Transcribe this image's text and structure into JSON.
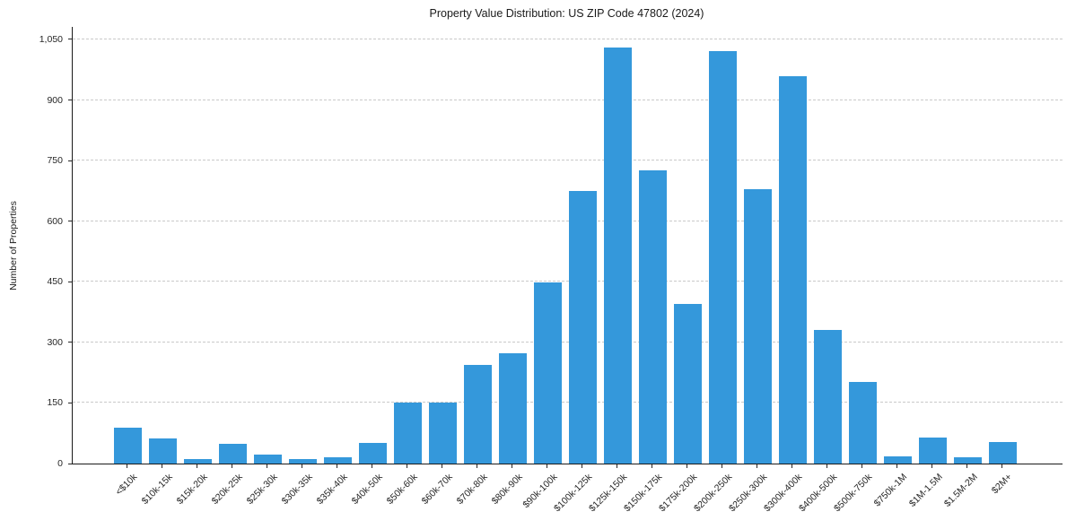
{
  "chart_data": {
    "type": "bar",
    "title": "Property Value Distribution: US ZIP Code 47802 (2024)",
    "xlabel": "",
    "ylabel": "Number of Properties",
    "categories": [
      "<$10k",
      "$10k-15k",
      "$15k-20k",
      "$20k-25k",
      "$25k-30k",
      "$30k-35k",
      "$35k-40k",
      "$40k-50k",
      "$50k-60k",
      "$60k-70k",
      "$70k-80k",
      "$80k-90k",
      "$90k-100k",
      "$100k-125k",
      "$125k-150k",
      "$150k-175k",
      "$175k-200k",
      "$200k-250k",
      "$250k-300k",
      "$300k-400k",
      "$400k-500k",
      "$500k-750k",
      "$750k-1M",
      "$1M-1.5M",
      "$1.5M-2M",
      "$2M+"
    ],
    "values": [
      88,
      62,
      12,
      48,
      22,
      12,
      16,
      50,
      152,
      150,
      245,
      272,
      448,
      675,
      1030,
      725,
      396,
      1022,
      680,
      958,
      330,
      203,
      18,
      65,
      15,
      53
    ],
    "y_ticks": [
      0,
      150,
      300,
      450,
      600,
      750,
      900,
      1050
    ],
    "y_tick_labels": [
      "0",
      "150",
      "300",
      "450",
      "600",
      "750",
      "900",
      "1,050"
    ],
    "ylim": [
      0,
      1081
    ],
    "grid": "horizontal-dashed",
    "legend": "none",
    "bar_color": "#3498db",
    "axis_color": "#1a1a1a",
    "grid_color": "#c9c9c9",
    "tick_label_color": "#262626"
  }
}
